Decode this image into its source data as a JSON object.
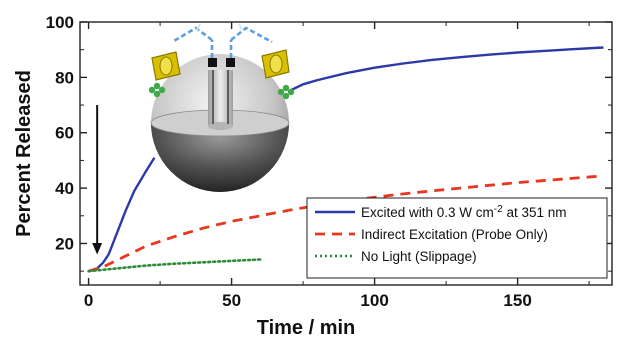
{
  "chart_data": {
    "type": "line",
    "xlabel": "Time / min",
    "ylabel": "Percent Released",
    "xlim": [
      -3,
      183
    ],
    "ylim": [
      5,
      100
    ],
    "xticks": [
      0,
      50,
      100,
      150
    ],
    "yticks": [
      20,
      40,
      60,
      80,
      100
    ],
    "grid": false,
    "legend_position": "bottom-right",
    "annotation": "arrow pointing down at light switched on",
    "annotation_x": 3,
    "series": [
      {
        "name": "Excited with 0.3 W cm⁻² at 351 nm",
        "name_main": "Excited with 0.3 W cm",
        "name_sup": "-2",
        "name_tail": " at 351 nm",
        "color": "#2b3aa8",
        "style": "solid",
        "x": [
          0,
          3,
          5,
          7,
          10,
          13,
          16,
          20,
          23,
          70,
          75,
          80,
          90,
          100,
          110,
          120,
          130,
          140,
          150,
          160,
          170,
          180
        ],
        "y": [
          10,
          11,
          13,
          16,
          24,
          32,
          39,
          46,
          51,
          75,
          77.5,
          79,
          81.5,
          83.5,
          85,
          86.3,
          87.3,
          88.2,
          89,
          89.6,
          90.2,
          90.8
        ]
      },
      {
        "name": "Indirect Excitation (Probe Only)",
        "color": "#e8361f",
        "style": "dashed",
        "x": [
          0,
          5,
          10,
          20,
          30,
          40,
          50,
          60,
          70,
          80,
          90,
          100,
          110,
          120,
          130,
          140,
          150,
          160,
          170,
          180
        ],
        "y": [
          10,
          11.5,
          14,
          19,
          22.5,
          25.5,
          28,
          30,
          32,
          33.8,
          35.3,
          36.7,
          37.9,
          39,
          40,
          41,
          42,
          42.8,
          43.6,
          44.4
        ]
      },
      {
        "name": "No Light (Slippage)",
        "color": "#2e8b3a",
        "style": "dotted",
        "x": [
          0,
          10,
          20,
          30,
          40,
          50,
          60
        ],
        "y": [
          10,
          11,
          12,
          12.7,
          13.2,
          13.7,
          14.2
        ]
      }
    ]
  }
}
